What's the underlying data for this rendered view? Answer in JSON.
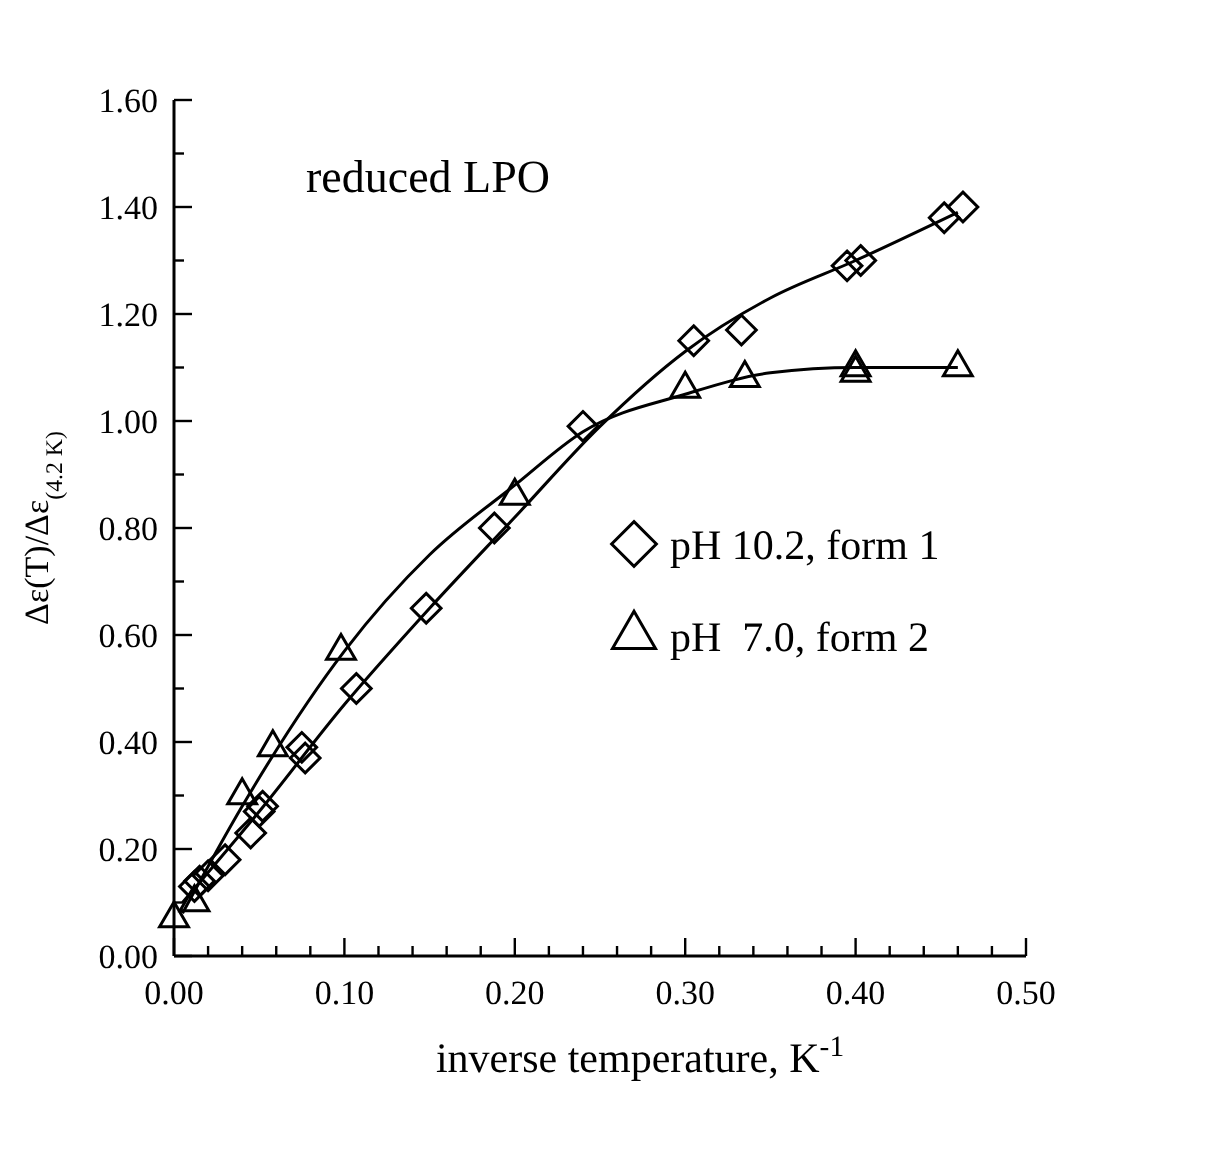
{
  "chart_data": {
    "type": "scatter",
    "xlabel": "inverse temperature, K$^{-1}$",
    "ylabel": "Δε(T)/Δε$_{(4.2 K)}$",
    "annotations": [
      "reduced LPO"
    ],
    "xlim": [
      0,
      0.5
    ],
    "ylim": [
      0,
      1.6
    ],
    "xticks": [
      {
        "value": 0,
        "label": "0.00"
      },
      {
        "value": 0.02,
        "label": null
      },
      {
        "value": 0.04,
        "label": null
      },
      {
        "value": 0.06,
        "label": null
      },
      {
        "value": 0.08,
        "label": null
      },
      {
        "value": 0.1,
        "label": "0.10"
      },
      {
        "value": 0.12,
        "label": null
      },
      {
        "value": 0.14,
        "label": null
      },
      {
        "value": 0.16,
        "label": null
      },
      {
        "value": 0.18,
        "label": null
      },
      {
        "value": 0.2,
        "label": "0.20"
      },
      {
        "value": 0.22,
        "label": null
      },
      {
        "value": 0.24,
        "label": null
      },
      {
        "value": 0.26,
        "label": null
      },
      {
        "value": 0.28,
        "label": null
      },
      {
        "value": 0.3,
        "label": "0.30"
      },
      {
        "value": 0.32,
        "label": null
      },
      {
        "value": 0.34,
        "label": null
      },
      {
        "value": 0.36,
        "label": null
      },
      {
        "value": 0.38,
        "label": null
      },
      {
        "value": 0.4,
        "label": "0.40"
      },
      {
        "value": 0.42,
        "label": null
      },
      {
        "value": 0.44,
        "label": null
      },
      {
        "value": 0.46,
        "label": null
      },
      {
        "value": 0.48,
        "label": null
      },
      {
        "value": 0.5,
        "label": "0.50"
      }
    ],
    "yticks": [
      {
        "value": 0,
        "label": "0.00"
      },
      {
        "value": 0.1,
        "label": null
      },
      {
        "value": 0.2,
        "label": "0.20"
      },
      {
        "value": 0.3,
        "label": null
      },
      {
        "value": 0.4,
        "label": "0.40"
      },
      {
        "value": 0.5,
        "label": null
      },
      {
        "value": 0.6,
        "label": "0.60"
      },
      {
        "value": 0.7,
        "label": null
      },
      {
        "value": 0.8,
        "label": "0.80"
      },
      {
        "value": 0.9,
        "label": null
      },
      {
        "value": 1.0,
        "label": "1.00"
      },
      {
        "value": 1.1,
        "label": null
      },
      {
        "value": 1.2,
        "label": "1.20"
      },
      {
        "value": 1.3,
        "label": null
      },
      {
        "value": 1.4,
        "label": "1.40"
      },
      {
        "value": 1.5,
        "label": null
      },
      {
        "value": 1.6,
        "label": "1.60"
      }
    ],
    "legend": "right",
    "grid": false,
    "series": [
      {
        "name": "pH 10.2, form 1",
        "color": "#000000",
        "marker": "diamond",
        "x": [
          0.012,
          0.015,
          0.02,
          0.03,
          0.045,
          0.05,
          0.052,
          0.075,
          0.077,
          0.107,
          0.148,
          0.188,
          0.24,
          0.305,
          0.333,
          0.395,
          0.403,
          0.452,
          0.463
        ],
        "values": [
          0.13,
          0.14,
          0.15,
          0.18,
          0.23,
          0.27,
          0.28,
          0.39,
          0.37,
          0.5,
          0.65,
          0.8,
          0.99,
          1.15,
          1.17,
          1.29,
          1.3,
          1.38,
          1.4
        ]
      },
      {
        "name": "pH  7.0, form 2",
        "color": "#000000",
        "marker": "triangle",
        "x": [
          0.0,
          0.012,
          0.04,
          0.058,
          0.098,
          0.2,
          0.3,
          0.335,
          0.4,
          0.4,
          0.46
        ],
        "values": [
          0.07,
          0.1,
          0.3,
          0.39,
          0.57,
          0.86,
          1.06,
          1.08,
          1.1,
          1.09,
          1.1
        ]
      },
      {
        "type": "line",
        "color": "#000000",
        "x": [
          0.005,
          0.05,
          0.1,
          0.15,
          0.2,
          0.25,
          0.3,
          0.35,
          0.4,
          0.46
        ],
        "values": [
          0.1,
          0.27,
          0.47,
          0.65,
          0.82,
          0.99,
          1.13,
          1.23,
          1.3,
          1.39
        ]
      },
      {
        "type": "line",
        "color": "#000000",
        "x": [
          0.005,
          0.04,
          0.1,
          0.15,
          0.2,
          0.24,
          0.3,
          0.35,
          0.4,
          0.46
        ],
        "values": [
          0.08,
          0.28,
          0.57,
          0.75,
          0.88,
          0.98,
          1.05,
          1.09,
          1.1,
          1.1
        ]
      }
    ]
  }
}
